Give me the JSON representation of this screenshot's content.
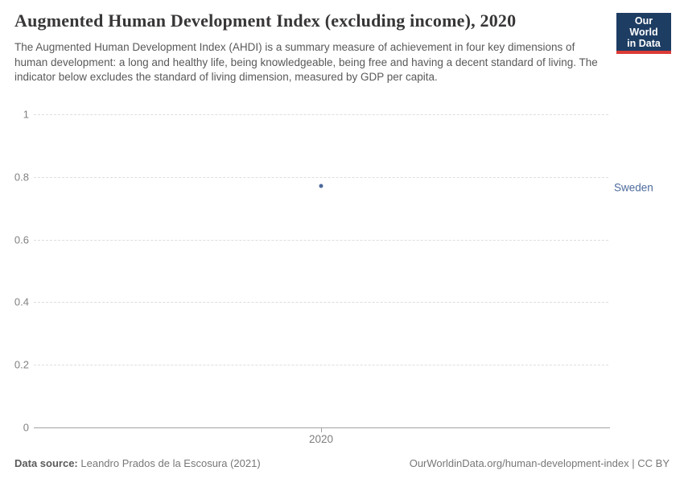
{
  "header": {
    "title": "Augmented Human Development Index (excluding income), 2020",
    "subtitle": "The Augmented Human Development Index (AHDI) is a summary measure of achievement in four key dimensions of human development: a long and healthy life, being knowledgeable, being free and having a decent standard of living. The indicator below excludes the standard of living dimension, measured by GDP per capita.",
    "logo": {
      "line1": "Our World",
      "line2": "in Data",
      "bg_color": "#1d3d63",
      "accent_color": "#dc3b37"
    }
  },
  "chart_data": {
    "type": "scatter",
    "x": [
      2020
    ],
    "series": [
      {
        "name": "Sweden",
        "values": [
          0.77
        ],
        "color": "#4c6a9c"
      }
    ],
    "title": "Augmented Human Development Index (excluding income), 2020",
    "xlabel": "",
    "ylabel": "",
    "ylim": [
      0,
      1
    ],
    "yticks": [
      0,
      0.2,
      0.4,
      0.6,
      0.8,
      1
    ],
    "xtick_labels": [
      "2020"
    ],
    "grid": "horizontal-dashed",
    "legend_position": "right-entity-label",
    "colors": {
      "gridline": "#dedede",
      "axis": "#a3a3a3",
      "tick_label": "#818181"
    }
  },
  "footer": {
    "datasource_label": "Data source:",
    "datasource_value": "Leandro Prados de la Escosura (2021)",
    "link": "OurWorldinData.org/human-development-index",
    "separator": "|",
    "license": "CC BY"
  }
}
